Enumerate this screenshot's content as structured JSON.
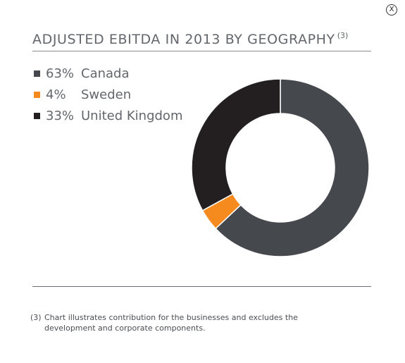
{
  "close_label": "X",
  "title": "ADJUSTED EBITDA IN 2013 BY GEOGRAPHY",
  "title_superscript": "(3)",
  "footnote": {
    "marker": "(3)",
    "text": "Chart illustrates contribution for the businesses and excludes the development and corporate components."
  },
  "chart_data": {
    "type": "pie",
    "variant": "donut",
    "title": "ADJUSTED EBITDA IN 2013 BY GEOGRAPHY",
    "legend_position": "top-left",
    "slices": [
      {
        "label": "Canada",
        "value": 63,
        "percent_label": "63%",
        "color": "#45484c"
      },
      {
        "label": "Sweden",
        "value": 4,
        "percent_label": "4%",
        "color": "#f58a1f"
      },
      {
        "label": "United Kingdom",
        "value": 33,
        "percent_label": "33%",
        "color": "#231f20"
      }
    ]
  }
}
